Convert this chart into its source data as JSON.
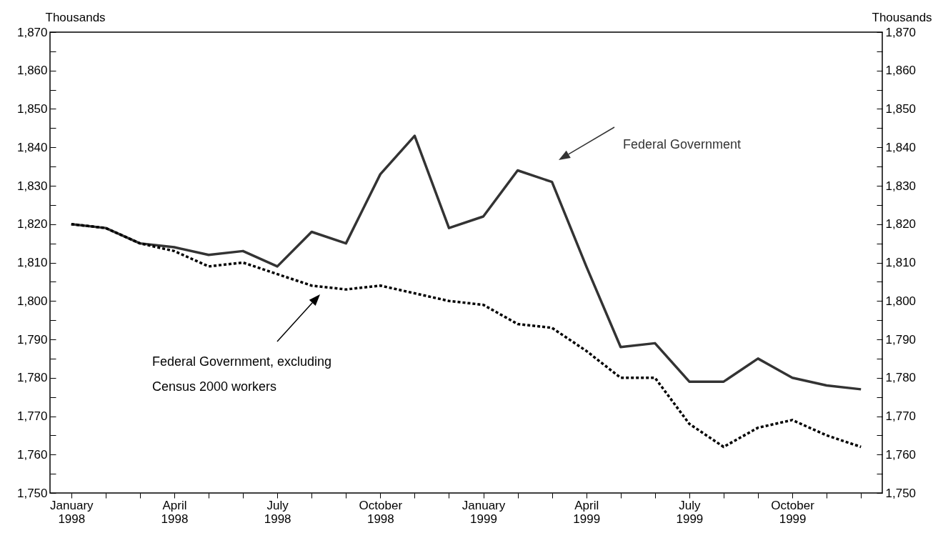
{
  "chart_data": {
    "type": "line",
    "ylabel": "Thousands",
    "y2label": "Thousands",
    "categories": [
      "January 1998",
      null,
      null,
      "April 1998",
      null,
      null,
      "July 1998",
      null,
      null,
      "October 1998",
      null,
      null,
      "January 1999",
      null,
      null,
      "April 1999",
      null,
      null,
      "July 1999",
      null,
      null,
      "October 1999",
      null,
      null
    ],
    "series": [
      {
        "name": "Federal Government",
        "color": "#333333",
        "line_style": "solid",
        "values": [
          1820,
          1819,
          1815,
          1814,
          1812,
          1813,
          1809,
          1818,
          1815,
          1833,
          1843,
          1819,
          1822,
          1834,
          1831,
          1809,
          1788,
          1789,
          1779,
          1779,
          1785,
          1780,
          1778,
          1777
        ]
      },
      {
        "name": "Federal Government, excluding Census 2000 workers",
        "color": "#000000",
        "line_style": "dotted",
        "axis": "y2",
        "values": [
          1820,
          1819,
          1815,
          1813,
          1809,
          1810,
          1807,
          1804,
          1803,
          1804,
          1802,
          1800,
          1799,
          1794,
          1793,
          1787,
          1780,
          1780,
          1768,
          1762,
          1767,
          1769,
          1765,
          1762
        ]
      }
    ],
    "ylim": [
      1750,
      1870
    ],
    "yticks": [
      {
        "value": 1750,
        "label": "1,750"
      },
      {
        "value": 1755,
        "label": null
      },
      {
        "value": 1760,
        "label": "1,760"
      },
      {
        "value": 1765,
        "label": null
      },
      {
        "value": 1770,
        "label": "1,770"
      },
      {
        "value": 1775,
        "label": null
      },
      {
        "value": 1780,
        "label": "1,780"
      },
      {
        "value": 1785,
        "label": null
      },
      {
        "value": 1790,
        "label": "1,790"
      },
      {
        "value": 1795,
        "label": null
      },
      {
        "value": 1800,
        "label": "1,800"
      },
      {
        "value": 1805,
        "label": null
      },
      {
        "value": 1810,
        "label": "1,810"
      },
      {
        "value": 1815,
        "label": null
      },
      {
        "value": 1820,
        "label": "1,820"
      },
      {
        "value": 1825,
        "label": null
      },
      {
        "value": 1830,
        "label": "1,830"
      },
      {
        "value": 1835,
        "label": null
      },
      {
        "value": 1840,
        "label": "1,840"
      },
      {
        "value": 1845,
        "label": null
      },
      {
        "value": 1850,
        "label": "1,850"
      },
      {
        "value": 1855,
        "label": null
      },
      {
        "value": 1860,
        "label": "1,860"
      },
      {
        "value": 1865,
        "label": null
      },
      {
        "value": 1870,
        "label": "1,870"
      }
    ],
    "y2lim": [
      1750,
      1870
    ],
    "y2ticks": [
      {
        "value": 1750,
        "label": "1,750"
      },
      {
        "value": 1755,
        "label": null
      },
      {
        "value": 1760,
        "label": "1,760"
      },
      {
        "value": 1765,
        "label": null
      },
      {
        "value": 1770,
        "label": "1,770"
      },
      {
        "value": 1775,
        "label": null
      },
      {
        "value": 1780,
        "label": "1,780"
      },
      {
        "value": 1785,
        "label": null
      },
      {
        "value": 1790,
        "label": "1,790"
      },
      {
        "value": 1795,
        "label": null
      },
      {
        "value": 1800,
        "label": "1,800"
      },
      {
        "value": 1805,
        "label": null
      },
      {
        "value": 1810,
        "label": "1,810"
      },
      {
        "value": 1815,
        "label": null
      },
      {
        "value": 1820,
        "label": "1,820"
      },
      {
        "value": 1825,
        "label": null
      },
      {
        "value": 1830,
        "label": "1,830"
      },
      {
        "value": 1835,
        "label": null
      },
      {
        "value": 1840,
        "label": "1,840"
      },
      {
        "value": 1845,
        "label": null
      },
      {
        "value": 1850,
        "label": "1,850"
      },
      {
        "value": 1855,
        "label": null
      },
      {
        "value": 1860,
        "label": "1,860"
      },
      {
        "value": 1865,
        "label": null
      },
      {
        "value": 1870,
        "label": "1,870"
      }
    ]
  }
}
